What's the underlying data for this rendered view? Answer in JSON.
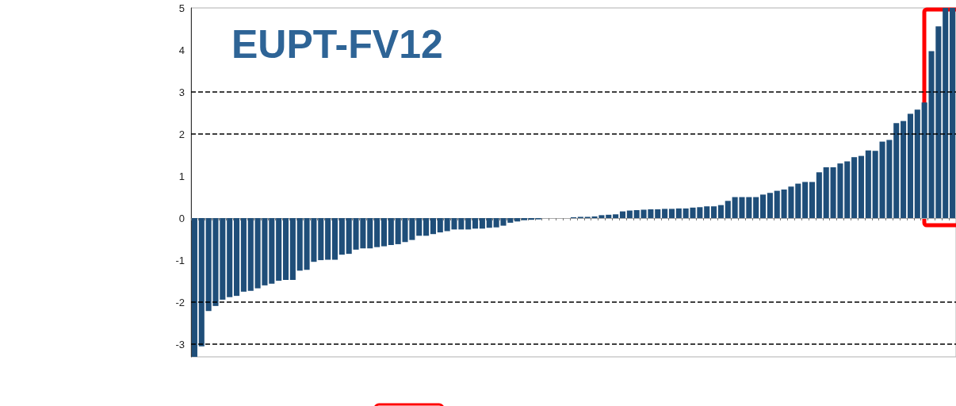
{
  "chart_data": {
    "type": "bar",
    "title": "EUPT-FV12",
    "color": "#1f4e79",
    "relative": false,
    "categories": [
      null,
      null,
      null,
      null,
      null,
      null,
      null,
      null,
      null,
      null,
      null,
      null,
      null,
      null,
      null,
      null,
      null,
      null,
      null,
      null,
      null,
      null,
      null,
      null,
      null,
      null,
      null,
      null,
      null,
      null,
      null,
      null,
      null,
      null,
      null,
      null,
      null,
      null,
      null,
      null,
      null,
      null,
      null,
      null,
      null,
      null,
      null,
      null,
      null,
      null,
      null,
      null,
      null,
      null,
      null,
      null,
      null,
      null,
      null,
      null,
      null,
      null,
      null,
      null,
      null,
      null,
      null,
      null,
      null,
      null,
      null,
      null,
      null,
      null,
      null,
      null,
      null,
      null,
      null,
      null,
      null,
      null,
      null,
      null,
      null,
      null,
      null,
      null,
      null,
      null,
      null,
      null,
      null,
      null,
      null,
      null,
      null,
      null,
      null,
      null,
      null,
      null,
      null,
      null,
      null,
      null,
      null,
      null,
      null
    ],
    "values": [
      -3.3,
      -3.05,
      -2.21,
      -2.09,
      -1.94,
      -1.88,
      -1.85,
      -1.75,
      -1.73,
      -1.67,
      -1.6,
      -1.56,
      -1.49,
      -1.47,
      -1.47,
      -1.25,
      -1.23,
      -1.04,
      -1.0,
      -0.99,
      -0.99,
      -0.87,
      -0.85,
      -0.75,
      -0.72,
      -0.72,
      -0.69,
      -0.67,
      -0.64,
      -0.62,
      -0.57,
      -0.52,
      -0.42,
      -0.42,
      -0.38,
      -0.34,
      -0.31,
      -0.27,
      -0.27,
      -0.27,
      -0.25,
      -0.25,
      -0.23,
      -0.22,
      -0.18,
      -0.11,
      -0.08,
      -0.05,
      -0.04,
      -0.03,
      0,
      0,
      0,
      0,
      0.02,
      0.03,
      0.03,
      0.04,
      0.07,
      0.08,
      0.09,
      0.16,
      0.18,
      0.19,
      0.2,
      0.21,
      0.21,
      0.22,
      0.22,
      0.23,
      0.23,
      0.25,
      0.26,
      0.28,
      0.28,
      0.31,
      0.41,
      0.5,
      0.5,
      0.5,
      0.5,
      0.56,
      0.6,
      0.65,
      0.68,
      0.75,
      0.82,
      0.86,
      0.86,
      1.09,
      1.21,
      1.21,
      1.3,
      1.35,
      1.45,
      1.48,
      1.61,
      1.6,
      1.82,
      1.86,
      2.26,
      2.31,
      2.48,
      2.58,
      2.75,
      3.97,
      4.56,
      5,
      5
    ],
    "ylim": [
      -3.3,
      5
    ],
    "yticks": [
      -3,
      -2,
      -1,
      0,
      1,
      2,
      3,
      4,
      5
    ],
    "grid": false,
    "ref_lines": [
      {
        "axis": "y",
        "value": 3,
        "color": "#000000",
        "line_style": "dashed"
      },
      {
        "axis": "y",
        "value": 2,
        "color": "#000000",
        "line_style": "dashed"
      },
      {
        "axis": "y",
        "value": -2,
        "color": "#000000",
        "line_style": "dashed"
      },
      {
        "axis": "y",
        "value": -3,
        "color": "#000000",
        "line_style": "dashed"
      }
    ]
  }
}
